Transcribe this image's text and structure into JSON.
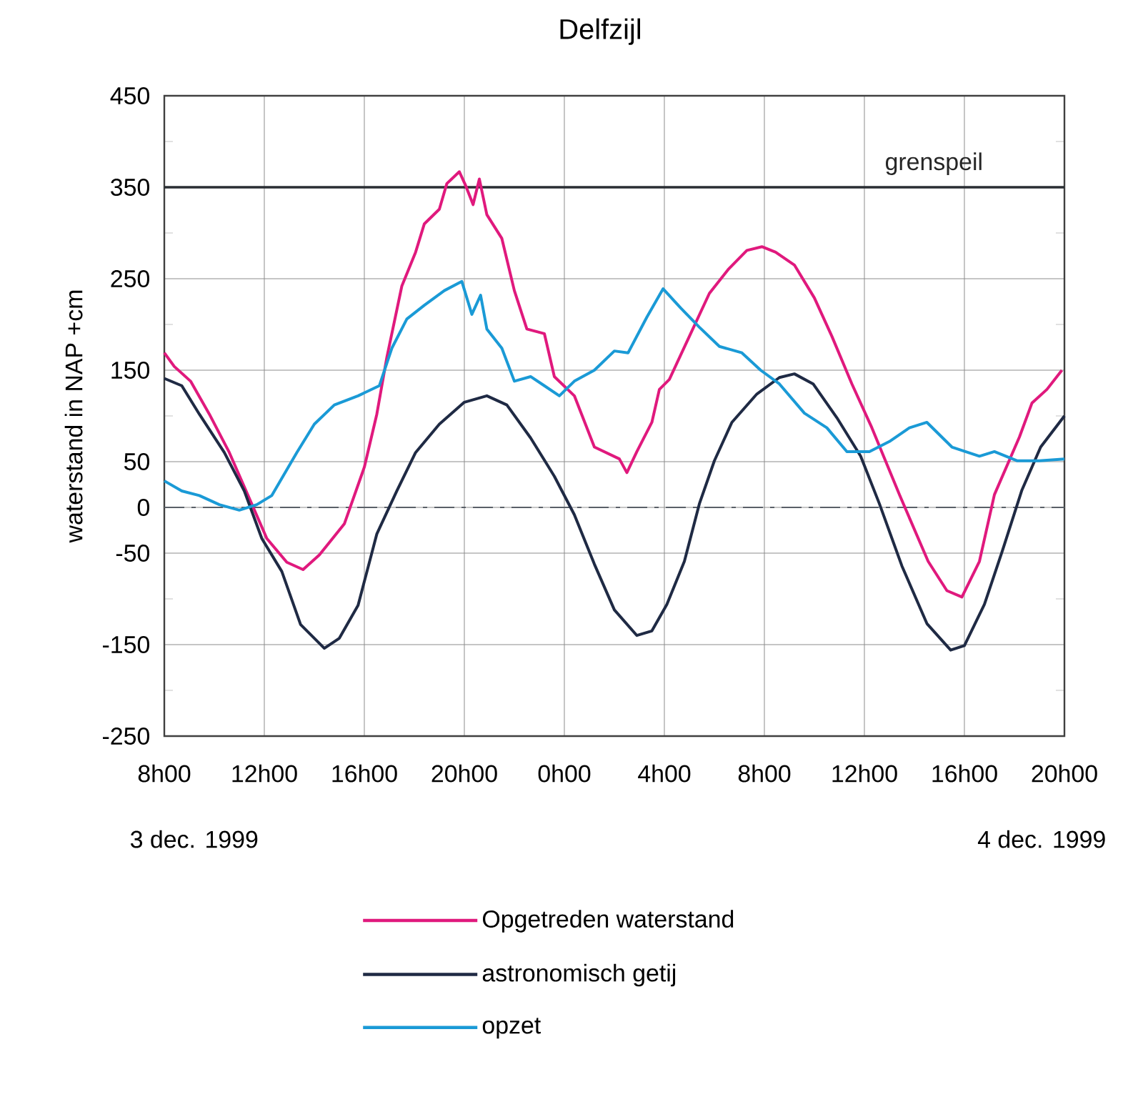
{
  "chart_data": {
    "type": "line",
    "title": "Delfzijl",
    "ylabel": "waterstand in NAP  +cm",
    "annotations": [
      "3 dec. 1999",
      "4 dec. 1999"
    ],
    "xlim": [
      "1999-12-03T08:00",
      "1999-12-04T20:00"
    ],
    "ylim": [
      -250,
      450
    ],
    "xticks": [
      {
        "value": "1999-12-03T08:00",
        "label": "8h00"
      },
      {
        "value": "1999-12-03T12:00",
        "label": "12h00"
      },
      {
        "value": "1999-12-03T16:00",
        "label": "16h00"
      },
      {
        "value": "1999-12-03T20:00",
        "label": "20h00"
      },
      {
        "value": "1999-12-04T00:00",
        "label": "0h00"
      },
      {
        "value": "1999-12-04T04:00",
        "label": "4h00"
      },
      {
        "value": "1999-12-04T08:00",
        "label": "8h00"
      },
      {
        "value": "1999-12-04T12:00",
        "label": "12h00"
      },
      {
        "value": "1999-12-04T16:00",
        "label": "16h00"
      },
      {
        "value": "1999-12-04T20:00",
        "label": "20h00"
      }
    ],
    "yticks": [
      -250,
      {
        "value": -200,
        "label": null
      },
      -150,
      {
        "value": -100,
        "label": null
      },
      -50,
      0,
      50,
      {
        "value": 100,
        "label": null
      },
      150,
      {
        "value": 200,
        "label": null
      },
      250,
      {
        "value": 300,
        "label": null
      },
      350,
      {
        "value": 400,
        "label": null
      },
      450
    ],
    "grid": true,
    "legend": "bottom",
    "ref_lines": [
      {
        "axis": "y",
        "value": 350,
        "label": "grenspeil",
        "color": "#2a2e33",
        "line_style": "solid"
      },
      {
        "axis": "y",
        "value": 0,
        "color": "#5a6068",
        "line_style": "dashdot"
      }
    ],
    "series": [
      {
        "name": "Opgetreden waterstand",
        "color": "#e0197d",
        "x": [
          "1999-12-03T08:00",
          "1999-12-03T08:24",
          "1999-12-03T09:03",
          "1999-12-03T09:48",
          "1999-12-03T10:36",
          "1999-12-03T11:21",
          "1999-12-03T12:06",
          "1999-12-03T12:54",
          "1999-12-03T13:33",
          "1999-12-03T14:12",
          "1999-12-03T15:12",
          "1999-12-03T16:00",
          "1999-12-03T16:30",
          "1999-12-03T16:54",
          "1999-12-03T17:30",
          "1999-12-03T18:03",
          "1999-12-03T18:24",
          "1999-12-03T19:00",
          "1999-12-03T19:18",
          "1999-12-03T19:48",
          "1999-12-03T20:03",
          "1999-12-03T20:21",
          "1999-12-03T20:36",
          "1999-12-03T20:54",
          "1999-12-03T21:30",
          "1999-12-03T22:00",
          "1999-12-03T22:30",
          "1999-12-03T23:12",
          "1999-12-03T23:36",
          "1999-12-04T00:24",
          "1999-12-04T01:12",
          "1999-12-04T02:12",
          "1999-12-04T02:30",
          "1999-12-04T02:54",
          "1999-12-04T03:30",
          "1999-12-04T03:48",
          "1999-12-04T04:12",
          "1999-12-04T05:00",
          "1999-12-04T05:48",
          "1999-12-04T06:33",
          "1999-12-04T07:18",
          "1999-12-04T07:54",
          "1999-12-04T08:27",
          "1999-12-04T09:12",
          "1999-12-04T10:00",
          "1999-12-04T10:42",
          "1999-12-04T11:30",
          "1999-12-04T12:18",
          "1999-12-04T13:24",
          "1999-12-04T14:33",
          "1999-12-04T15:18",
          "1999-12-04T15:54",
          "1999-12-04T16:36",
          "1999-12-04T17:12",
          "1999-12-04T18:12",
          "1999-12-04T18:42",
          "1999-12-04T19:18",
          "1999-12-04T19:54"
        ],
        "values": [
          169,
          154,
          138,
          102,
          60,
          13,
          -34,
          -60,
          -68,
          -52,
          -18,
          44,
          102,
          164,
          242,
          279,
          310,
          326,
          354,
          367,
          352,
          331,
          359,
          320,
          294,
          237,
          195,
          190,
          143,
          122,
          66,
          53,
          38,
          61,
          93,
          129,
          140,
          187,
          234,
          260,
          281,
          285,
          279,
          265,
          229,
          187,
          135,
          87,
          14,
          -59,
          -91,
          -98,
          -59,
          14,
          77,
          114,
          129,
          150
        ]
      },
      {
        "name": "astronomisch getij",
        "color": "#1f2a44",
        "x": [
          "1999-12-03T08:00",
          "1999-12-03T08:42",
          "1999-12-03T09:24",
          "1999-12-03T10:24",
          "1999-12-03T11:12",
          "1999-12-03T11:54",
          "1999-12-03T12:42",
          "1999-12-03T13:27",
          "1999-12-03T14:24",
          "1999-12-03T15:00",
          "1999-12-03T15:45",
          "1999-12-03T16:30",
          "1999-12-03T17:18",
          "1999-12-03T18:03",
          "1999-12-03T19:00",
          "1999-12-03T20:00",
          "1999-12-03T20:54",
          "1999-12-03T21:42",
          "1999-12-03T22:39",
          "1999-12-03T23:36",
          "1999-12-04T00:24",
          "1999-12-04T01:12",
          "1999-12-04T02:00",
          "1999-12-04T02:54",
          "1999-12-04T03:30",
          "1999-12-04T04:06",
          "1999-12-04T04:48",
          "1999-12-04T05:24",
          "1999-12-04T06:00",
          "1999-12-04T06:42",
          "1999-12-04T07:42",
          "1999-12-04T08:36",
          "1999-12-04T09:12",
          "1999-12-04T09:57",
          "1999-12-04T10:54",
          "1999-12-04T11:51",
          "1999-12-04T12:36",
          "1999-12-04T13:30",
          "1999-12-04T14:30",
          "1999-12-04T15:27",
          "1999-12-04T16:00",
          "1999-12-04T16:48",
          "1999-12-04T17:30",
          "1999-12-04T18:18",
          "1999-12-04T19:03",
          "1999-12-04T20:00"
        ],
        "values": [
          141,
          133,
          102,
          60,
          18,
          -34,
          -70,
          -128,
          -154,
          -143,
          -107,
          -29,
          18,
          60,
          91,
          115,
          122,
          112,
          76,
          34,
          -8,
          -62,
          -112,
          -140,
          -135,
          -106,
          -59,
          4,
          51,
          93,
          124,
          142,
          146,
          135,
          98,
          56,
          4,
          -64,
          -127,
          -156,
          -151,
          -106,
          -49,
          19,
          66,
          100
        ]
      },
      {
        "name": "opzet",
        "color": "#1a9ad6",
        "x": [
          "1999-12-03T08:00",
          "1999-12-03T08:42",
          "1999-12-03T09:24",
          "1999-12-03T10:12",
          "1999-12-03T11:00",
          "1999-12-03T11:42",
          "1999-12-03T12:18",
          "1999-12-03T13:18",
          "1999-12-03T14:00",
          "1999-12-03T14:48",
          "1999-12-03T15:45",
          "1999-12-03T16:36",
          "1999-12-03T17:06",
          "1999-12-03T17:42",
          "1999-12-03T18:24",
          "1999-12-03T19:12",
          "1999-12-03T19:54",
          "1999-12-03T20:18",
          "1999-12-03T20:39",
          "1999-12-03T20:54",
          "1999-12-03T21:30",
          "1999-12-03T22:00",
          "1999-12-03T22:39",
          "1999-12-03T23:12",
          "1999-12-03T23:48",
          "1999-12-04T00:24",
          "1999-12-04T01:12",
          "1999-12-04T02:00",
          "1999-12-04T02:33",
          "1999-12-04T03:18",
          "1999-12-04T03:57",
          "1999-12-04T04:39",
          "1999-12-04T05:24",
          "1999-12-04T06:12",
          "1999-12-04T07:06",
          "1999-12-04T07:51",
          "1999-12-04T08:36",
          "1999-12-04T09:36",
          "1999-12-04T10:30",
          "1999-12-04T11:18",
          "1999-12-04T12:12",
          "1999-12-04T13:00",
          "1999-12-04T13:48",
          "1999-12-04T14:30",
          "1999-12-04T15:30",
          "1999-12-04T16:36",
          "1999-12-04T17:12",
          "1999-12-04T18:06",
          "1999-12-04T19:00",
          "1999-12-04T20:00"
        ],
        "values": [
          29,
          18,
          13,
          3,
          -3,
          3,
          13,
          60,
          91,
          112,
          122,
          133,
          174,
          206,
          221,
          237,
          247,
          211,
          232,
          195,
          174,
          138,
          143,
          133,
          122,
          138,
          150,
          171,
          169,
          208,
          239,
          218,
          197,
          176,
          169,
          150,
          135,
          103,
          87,
          61,
          61,
          72,
          87,
          93,
          66,
          56,
          61,
          51,
          51,
          53
        ]
      }
    ]
  }
}
